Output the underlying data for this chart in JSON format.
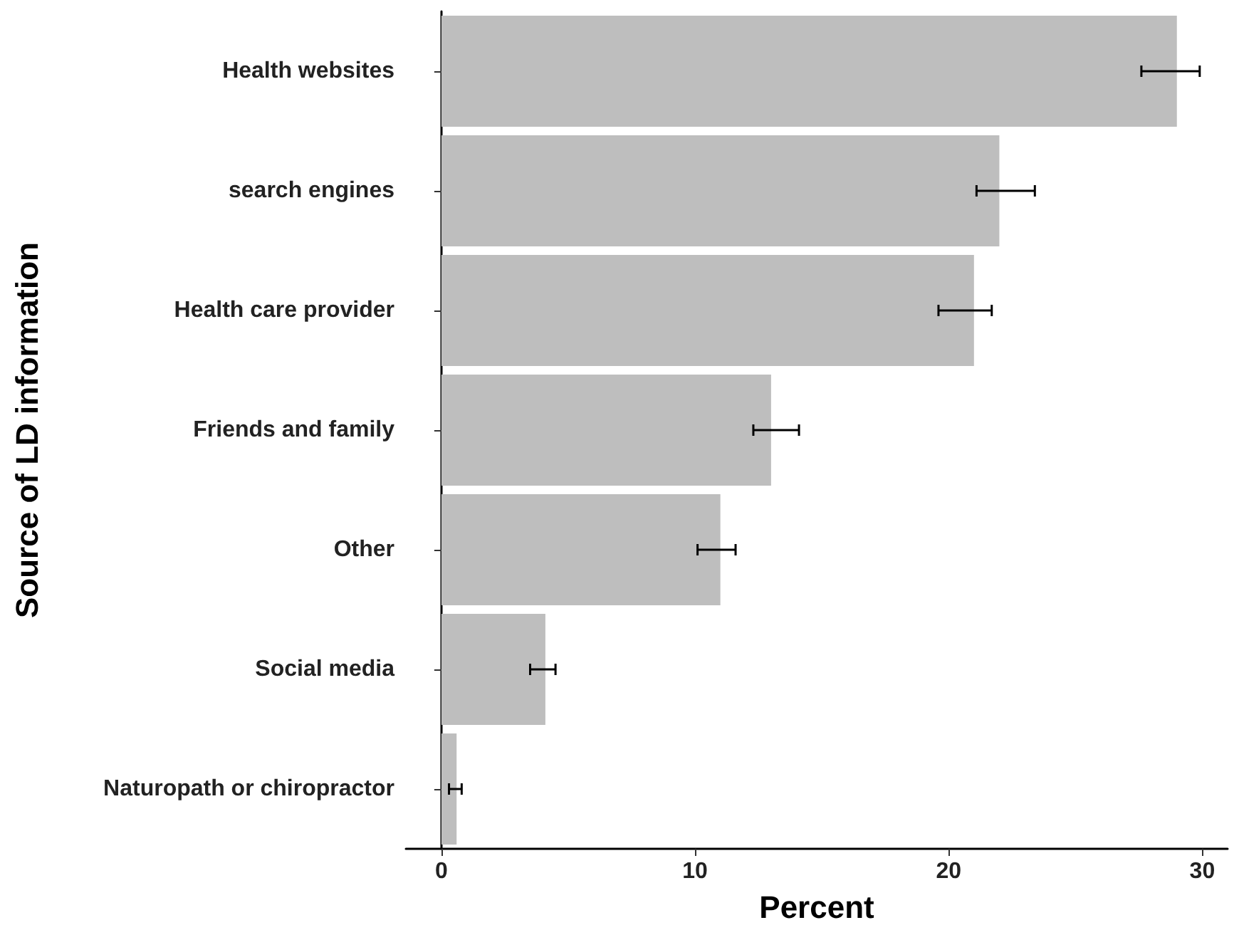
{
  "chart_data": {
    "type": "bar",
    "orientation": "horizontal",
    "xlabel": "Percent",
    "ylabel": "Source of LD information",
    "categories": [
      "Health websites",
      "search engines",
      "Health care provider",
      "Friends and family",
      "Other",
      "Social media",
      "Naturopath or chiropractor"
    ],
    "values": [
      29.0,
      22.0,
      21.0,
      13.0,
      11.0,
      4.1,
      0.6
    ],
    "errors": [
      [
        27.6,
        29.9
      ],
      [
        21.1,
        23.4
      ],
      [
        19.6,
        21.7
      ],
      [
        12.3,
        14.1
      ],
      [
        10.1,
        11.6
      ],
      [
        3.5,
        4.5
      ],
      [
        0.3,
        0.8
      ]
    ],
    "color": "#bebebe",
    "xlim": [
      -1.4,
      31
    ],
    "xticks": [
      0,
      10,
      20,
      30
    ],
    "grid": false
  }
}
